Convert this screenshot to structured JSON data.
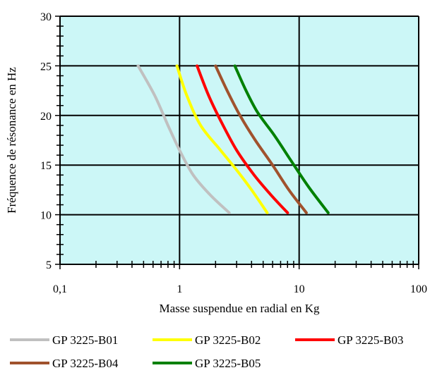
{
  "chart_data": {
    "type": "line",
    "x_scale": "log",
    "xlim": [
      0.1,
      100
    ],
    "ylim": [
      5,
      30
    ],
    "grid": true,
    "plot_background": "#ccf7f7",
    "xlabel": "Masse suspendue en radial en Kg",
    "ylabel": "Fréquence de résonance en Hz",
    "x_ticks": [
      0.1,
      1,
      10,
      100
    ],
    "x_tick_labels": [
      "0,1",
      "1",
      "10",
      "100"
    ],
    "y_ticks": [
      5,
      10,
      15,
      20,
      25,
      30
    ],
    "y_tick_labels": [
      "5",
      "10",
      "15",
      "20",
      "25",
      "30"
    ],
    "legend_position": "bottom",
    "series": [
      {
        "name": "GP 3225-B01",
        "color": "#c0c0c0",
        "points": [
          [
            0.45,
            25
          ],
          [
            0.62,
            22
          ],
          [
            0.8,
            19
          ],
          [
            1.0,
            16.5
          ],
          [
            1.3,
            14
          ],
          [
            1.8,
            12
          ],
          [
            2.6,
            10.2
          ]
        ]
      },
      {
        "name": "GP 3225-B02",
        "color": "#ffff00",
        "points": [
          [
            0.95,
            25
          ],
          [
            1.15,
            22
          ],
          [
            1.5,
            19
          ],
          [
            2.2,
            16.5
          ],
          [
            3.0,
            14.5
          ],
          [
            4.0,
            12.5
          ],
          [
            5.4,
            10.2
          ]
        ]
      },
      {
        "name": "GP 3225-B03",
        "color": "#ff0000",
        "points": [
          [
            1.4,
            25
          ],
          [
            1.75,
            22
          ],
          [
            2.2,
            19.5
          ],
          [
            3.0,
            16.5
          ],
          [
            4.2,
            14
          ],
          [
            5.8,
            12
          ],
          [
            8.0,
            10.2
          ]
        ]
      },
      {
        "name": "GP 3225-B04",
        "color": "#a0522d",
        "points": [
          [
            2.0,
            25
          ],
          [
            2.5,
            22.5
          ],
          [
            3.2,
            20
          ],
          [
            4.3,
            17.5
          ],
          [
            6.0,
            15
          ],
          [
            8.2,
            12.5
          ],
          [
            11.5,
            10.2
          ]
        ]
      },
      {
        "name": "GP 3225-B05",
        "color": "#008000",
        "points": [
          [
            2.9,
            25
          ],
          [
            3.6,
            22.5
          ],
          [
            4.5,
            20.3
          ],
          [
            6.2,
            18
          ],
          [
            8.5,
            15.5
          ],
          [
            12.0,
            12.8
          ],
          [
            17.5,
            10.2
          ]
        ]
      }
    ]
  }
}
